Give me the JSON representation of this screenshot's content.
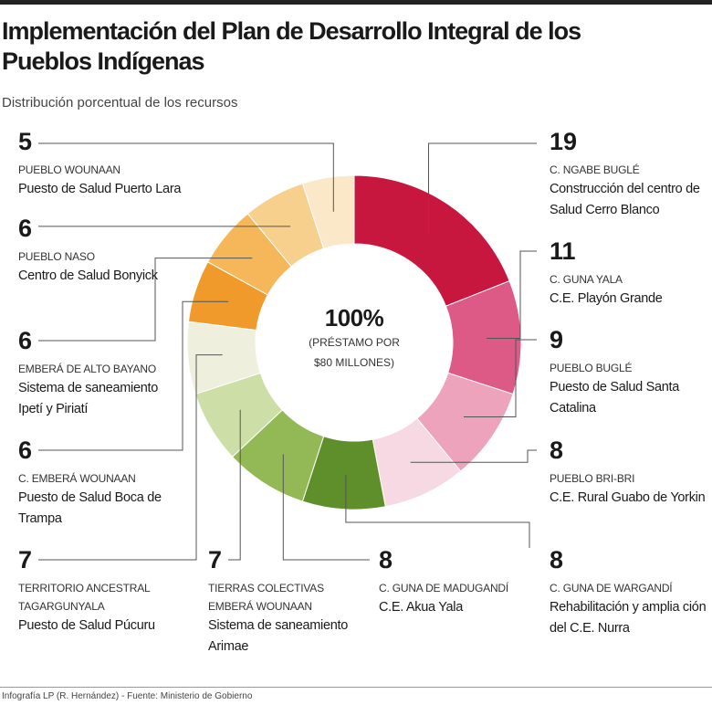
{
  "header": {
    "title": "Implementación del Plan de Desarrollo Integral de los Pueblos Indígenas",
    "subtitle": "Distribución porcentual de los recursos"
  },
  "chart_data": {
    "type": "pie",
    "donut": true,
    "center_value": "100%",
    "center_note": "(PRÉSTAMO POR $80 MILLONES)",
    "categories": [
      "C. NGABE BUGLÉ",
      "C. GUNA YALA",
      "PUEBLO BUGLÉ",
      "PUEBLO BRI-BRI",
      "C. GUNA DE WARGANDÍ",
      "C. GUNA DE MADUGANDÍ",
      "TIERRAS COLECTIVAS EMBERÁ WOUNAAN",
      "TERRITORIO ANCESTRAL TAGARGUNYALA",
      "C. EMBERÁ WOUNAAN",
      "EMBERÁ DE ALTO BAYANO",
      "PUEBLO NASO",
      "PUEBLO WOUNAAN"
    ],
    "descriptions": [
      "Construcción del centro de Salud Cerro Blanco",
      "C.E. Playón Grande",
      "Puesto de Salud Santa Catalina",
      "C.E. Rural Guabo de Yorkin",
      "Rehabilitación y amplia ción del C.E. Nurra",
      "C.E. Akua Yala",
      "Sistema de saneamiento Arimae",
      "Puesto de Salud Púcuru",
      "Puesto de Salud Boca de Trampa",
      "Sistema de saneamiento Ipetí y Piriatí",
      "Centro de Salud Bonyick",
      "Puesto de Salud Puerto Lara"
    ],
    "values": [
      19,
      11,
      9,
      8,
      8,
      8,
      7,
      7,
      6,
      6,
      6,
      5
    ],
    "colors": [
      "#c8173f",
      "#de5a86",
      "#eda3bb",
      "#f6d9e2",
      "#5f8f2a",
      "#93b956",
      "#cddfa6",
      "#eef0dd",
      "#ef9a2a",
      "#f5b75a",
      "#f8d08e",
      "#fbe8c8"
    ]
  },
  "footer": {
    "source": "Infografía LP (R. Hernández) - Fuente: Ministerio de Gobierno"
  }
}
